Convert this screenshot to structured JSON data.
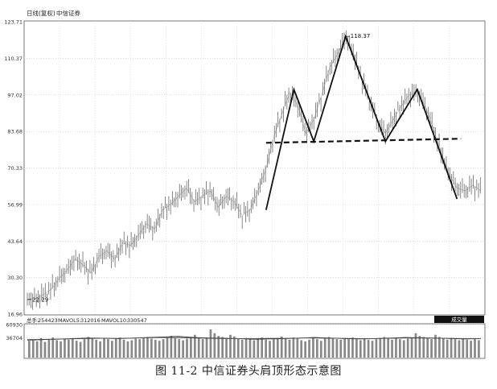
{
  "header": {
    "mode": "日线(复权)",
    "stock": "中信证券"
  },
  "caption": "图 11-2   中信证券头肩顶形态示意图",
  "volume_header": {
    "label": "总手:",
    "total": "254423",
    "mavol5_label": "MAVOL5:",
    "mavol5": "312016",
    "mavol10_label": "MAVOL10:",
    "mavol10": "330547"
  },
  "volume_button": "成交量",
  "chart_data": {
    "type": "line",
    "title": "",
    "xlabel": "",
    "ylabel": "",
    "ylim": [
      16.96,
      123.71
    ],
    "yticks": [
      "123.71",
      "110.37",
      "97.02",
      "83.68",
      "70.33",
      "56.99",
      "43.64",
      "30.30",
      "16.96"
    ],
    "price_labels": {
      "low": "22.29",
      "high": "118.37"
    },
    "series": [
      {
        "points": [
          [
            0,
            22.29
          ],
          [
            2,
            22.5
          ],
          [
            4,
            24
          ],
          [
            6,
            26
          ],
          [
            8,
            30
          ],
          [
            10,
            33
          ],
          [
            12,
            37
          ],
          [
            14,
            35
          ],
          [
            16,
            32
          ],
          [
            18,
            38
          ],
          [
            20,
            40
          ],
          [
            22,
            37
          ],
          [
            24,
            43
          ],
          [
            26,
            42
          ],
          [
            28,
            46
          ],
          [
            30,
            50
          ],
          [
            32,
            48
          ],
          [
            34,
            55
          ],
          [
            36,
            57
          ],
          [
            38,
            60
          ],
          [
            40,
            63
          ],
          [
            42,
            58
          ],
          [
            44,
            60
          ],
          [
            46,
            62
          ],
          [
            48,
            56
          ],
          [
            50,
            60
          ],
          [
            52,
            58
          ],
          [
            54,
            53
          ],
          [
            56,
            55
          ],
          [
            58,
            62
          ],
          [
            60,
            70
          ],
          [
            62,
            82
          ],
          [
            64,
            90
          ],
          [
            66,
            98
          ],
          [
            68,
            93
          ],
          [
            70,
            83
          ],
          [
            72,
            88
          ],
          [
            74,
            97
          ],
          [
            76,
            107
          ],
          [
            78,
            112
          ],
          [
            80,
            118.37
          ],
          [
            82,
            112
          ],
          [
            84,
            103
          ],
          [
            86,
            95
          ],
          [
            88,
            87
          ],
          [
            90,
            83
          ],
          [
            92,
            88
          ],
          [
            94,
            93
          ],
          [
            96,
            97
          ],
          [
            98,
            98
          ],
          [
            100,
            93
          ],
          [
            102,
            85
          ],
          [
            104,
            76
          ],
          [
            106,
            68
          ],
          [
            108,
            63
          ],
          [
            110,
            62
          ],
          [
            112,
            64
          ],
          [
            114,
            62
          ]
        ]
      }
    ],
    "neckline": {
      "from": [
        60,
        79.5
      ],
      "to": [
        109,
        81
      ]
    },
    "pattern": [
      [
        60,
        55
      ],
      [
        67,
        99
      ],
      [
        72,
        80
      ],
      [
        80,
        118.37
      ],
      [
        90,
        80
      ],
      [
        98,
        99
      ],
      [
        108,
        59
      ]
    ],
    "volume": {
      "ylim": [
        0,
        60930
      ],
      "yticks": [
        "60930",
        "36704"
      ],
      "values": [
        31000,
        33000,
        30000,
        36000,
        29000,
        34000,
        37000,
        32000,
        30000,
        35000,
        33000,
        36000,
        31000,
        29000,
        34000,
        38000,
        35000,
        33000,
        30000,
        36000,
        34000,
        31000,
        35000,
        37000,
        33000,
        30000,
        32000,
        35000,
        34000,
        36000,
        38000,
        35000,
        33000,
        31000,
        34000,
        37000,
        40000,
        36000,
        34000,
        32000,
        35000,
        38000,
        42000,
        36000,
        34000,
        37000,
        52000,
        45000,
        40000,
        38000,
        36000,
        42000,
        39000,
        35000,
        33000,
        36000,
        34000,
        32000,
        35000,
        37000,
        33000,
        31000,
        34000,
        36000,
        39000,
        35000,
        33000,
        37000,
        35000,
        32000,
        30000,
        33000,
        36000,
        34000,
        31000,
        35000,
        38000,
        36000,
        34000,
        33000,
        36000,
        35000,
        37000,
        34000,
        32000,
        35000,
        33000,
        31000,
        34000,
        36000,
        38000,
        35000,
        33000,
        36000,
        34000,
        32000,
        35000,
        37000,
        45000,
        40000,
        38000,
        36000,
        34000,
        42000,
        38000,
        35000,
        33000,
        36000,
        34000,
        32000,
        35000,
        33000,
        31000,
        34000,
        32000
      ],
      "mavol5": [
        33000,
        33500,
        34000,
        35000,
        36000,
        35500,
        35000,
        36000,
        37000,
        38000,
        39000,
        37000,
        36000,
        35500,
        35000,
        34000,
        34500,
        35000,
        36000,
        37000,
        36000,
        35000,
        34500,
        35000,
        36000,
        37000,
        36500,
        36000,
        35000,
        34500,
        35000
      ],
      "mavol10": [
        32000,
        33000,
        34000,
        34500,
        35000,
        35500,
        35500,
        36000,
        36500,
        37000,
        36500,
        36000,
        35500,
        35000,
        35000,
        35000,
        35500,
        35500,
        36000,
        36000,
        35500,
        35500,
        35000,
        35000,
        35500,
        36000,
        36000,
        35500,
        35500,
        35000,
        35000
      ]
    }
  }
}
